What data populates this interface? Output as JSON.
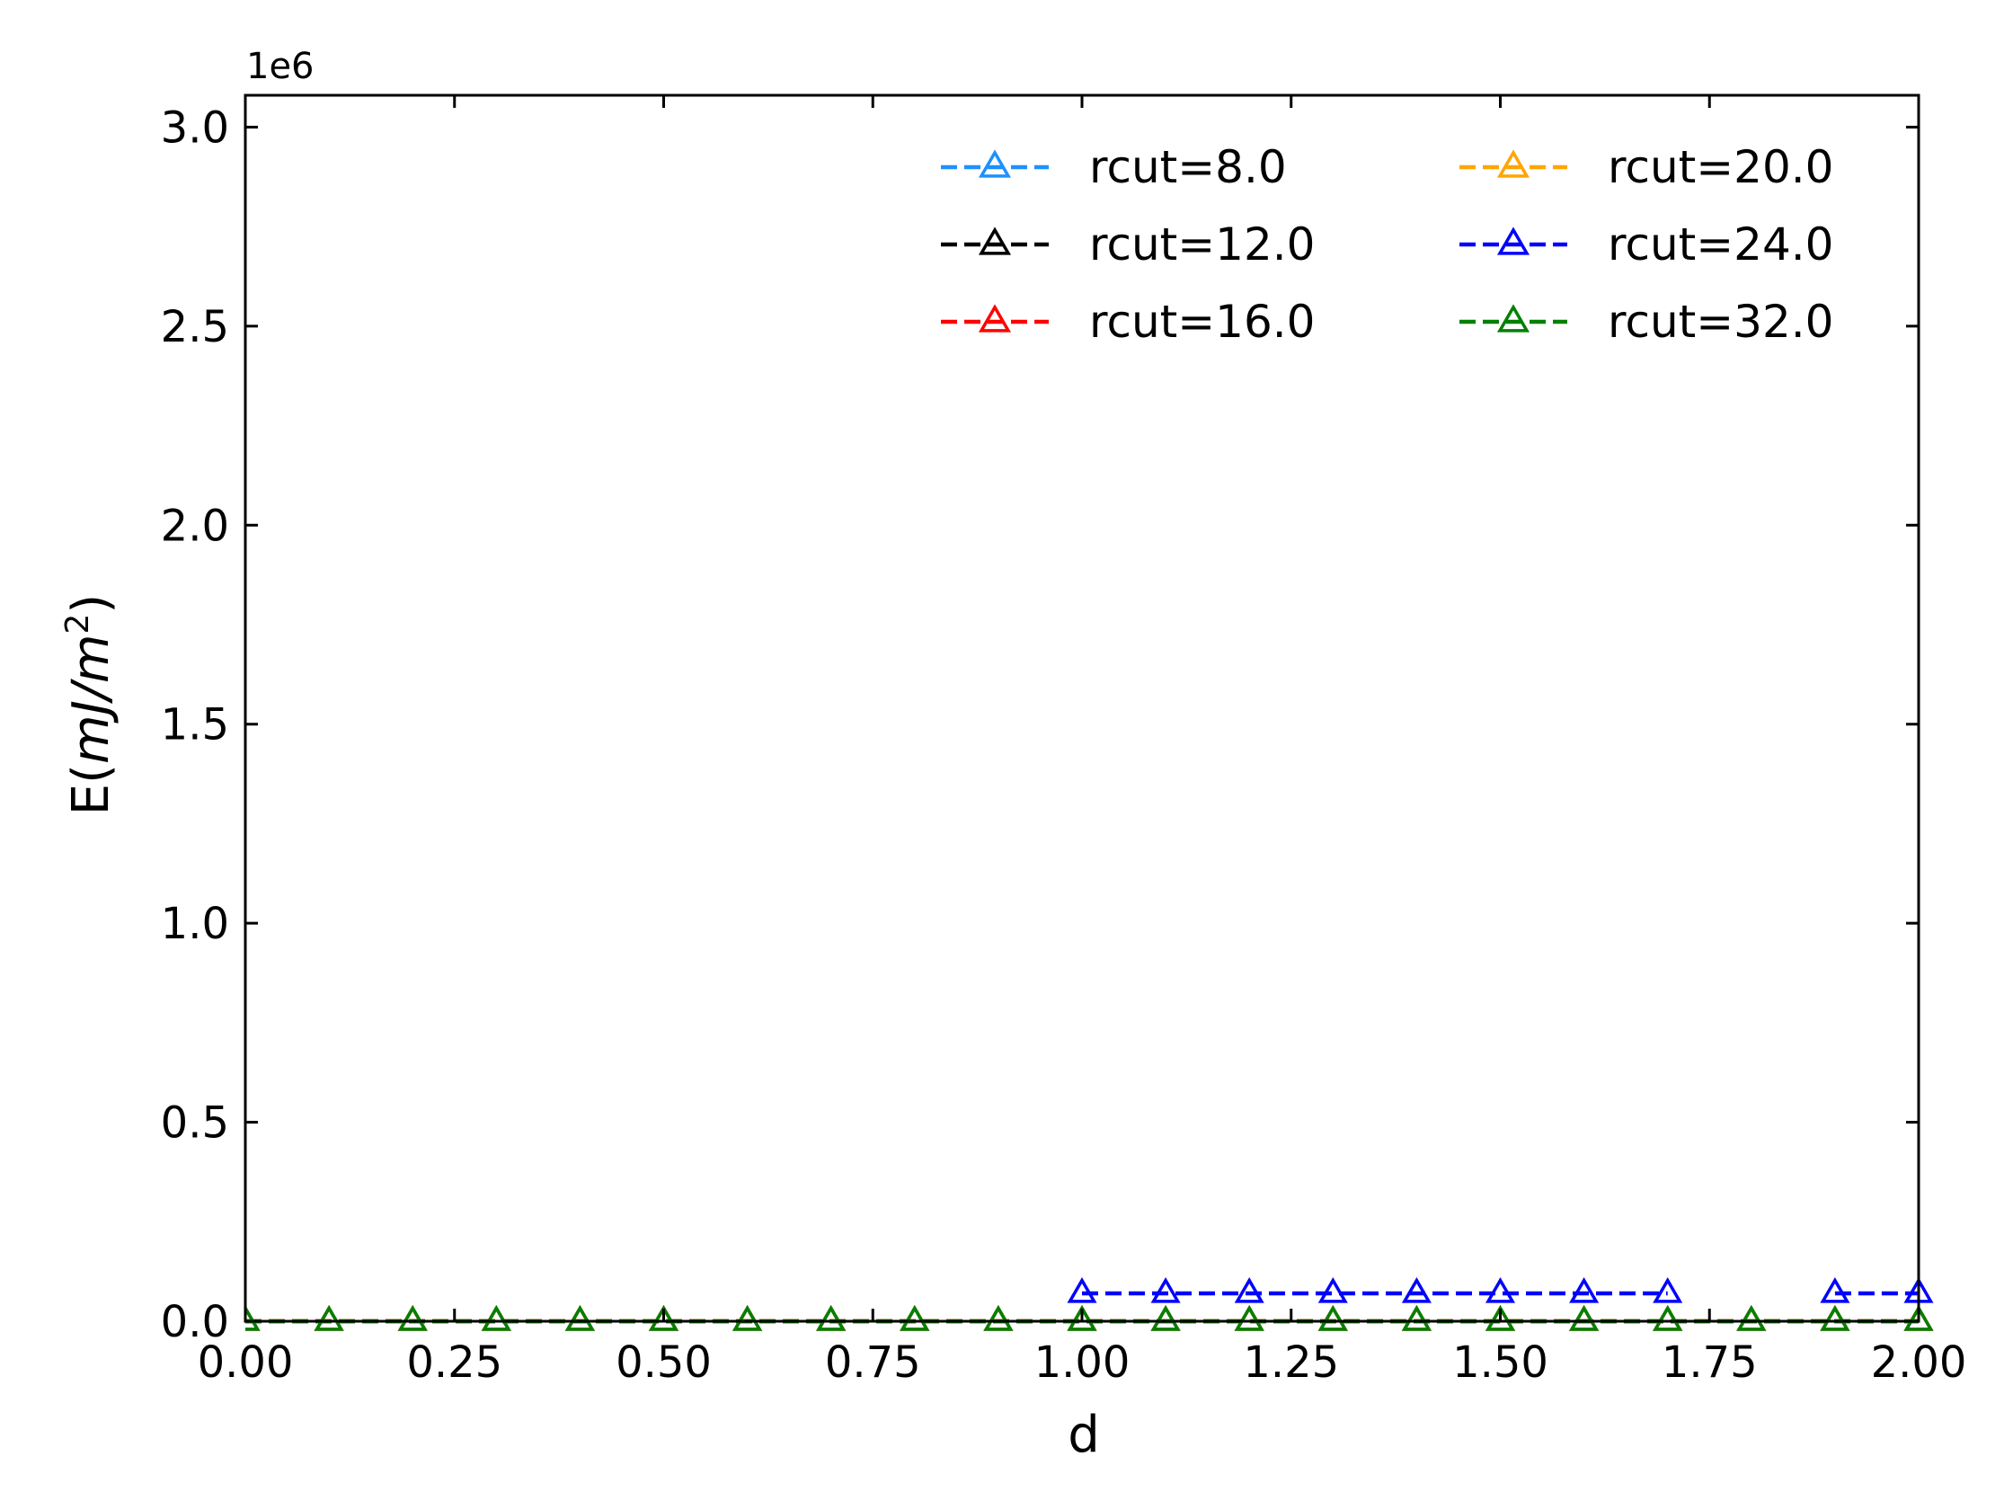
{
  "chart_data": {
    "type": "line",
    "xlabel": "d",
    "ylabel_main": "E(",
    "ylabel_unit": "mJ/m",
    "ylabel_exp": "2",
    "ylabel_close": ")",
    "y_offset_label": "1e6",
    "xlim": [
      0.0,
      2.0
    ],
    "ylim": [
      0.0,
      3.08
    ],
    "x_ticks": [
      0.0,
      0.25,
      0.5,
      0.75,
      1.0,
      1.25,
      1.5,
      1.75,
      2.0
    ],
    "x_tick_labels": [
      "0.00",
      "0.25",
      "0.50",
      "0.75",
      "1.00",
      "1.25",
      "1.50",
      "1.75",
      "2.00"
    ],
    "y_ticks": [
      0.0,
      0.5,
      1.0,
      1.5,
      2.0,
      2.5,
      3.0
    ],
    "y_tick_labels": [
      "0.0",
      "0.5",
      "1.0",
      "1.5",
      "2.0",
      "2.5",
      "3.0"
    ],
    "grid": false,
    "legend_position": "top-right",
    "x": [
      0.0,
      0.1,
      0.2,
      0.3,
      0.4,
      0.5,
      0.6,
      0.7,
      0.8,
      0.9,
      1.0,
      1.1,
      1.2,
      1.3,
      1.4,
      1.5,
      1.6,
      1.7,
      1.8,
      1.9,
      2.0
    ],
    "series": [
      {
        "name": "rcut=8.0",
        "color": "#1e90ff",
        "values": [
          0,
          0,
          0,
          0,
          0,
          0,
          0,
          0,
          0,
          0,
          0,
          0,
          0,
          0,
          0,
          0,
          0,
          0,
          0,
          0,
          0
        ]
      },
      {
        "name": "rcut=12.0",
        "color": "#000000",
        "values": [
          0,
          0,
          0,
          0,
          0,
          0,
          0,
          0,
          0,
          0,
          0,
          0,
          0,
          0,
          0,
          0,
          0,
          0,
          0,
          0,
          0
        ]
      },
      {
        "name": "rcut=16.0",
        "color": "#ff0000",
        "values": [
          0,
          0,
          0,
          0,
          0,
          0,
          0,
          0,
          0,
          0,
          0,
          0,
          0,
          0,
          0,
          0,
          0,
          0,
          0,
          0,
          0
        ]
      },
      {
        "name": "rcut=20.0",
        "color": "#ffa500",
        "values": [
          0,
          0,
          0,
          0,
          0,
          0,
          0,
          0,
          0,
          0,
          0,
          0,
          0,
          0,
          0,
          0,
          0,
          0,
          0,
          0,
          0
        ]
      },
      {
        "name": "rcut=24.0",
        "color": "#0000ff",
        "values": [
          null,
          null,
          null,
          null,
          null,
          null,
          null,
          null,
          null,
          null,
          0.07,
          0.07,
          0.07,
          0.07,
          0.07,
          0.07,
          0.07,
          0.07,
          null,
          0.07,
          0.07
        ]
      },
      {
        "name": "rcut=32.0",
        "color": "#008000",
        "values": [
          0,
          0,
          0,
          0,
          0,
          0,
          0,
          0,
          0,
          0,
          0,
          0,
          0,
          0,
          0,
          0,
          0,
          0,
          0,
          0,
          0
        ]
      }
    ]
  }
}
